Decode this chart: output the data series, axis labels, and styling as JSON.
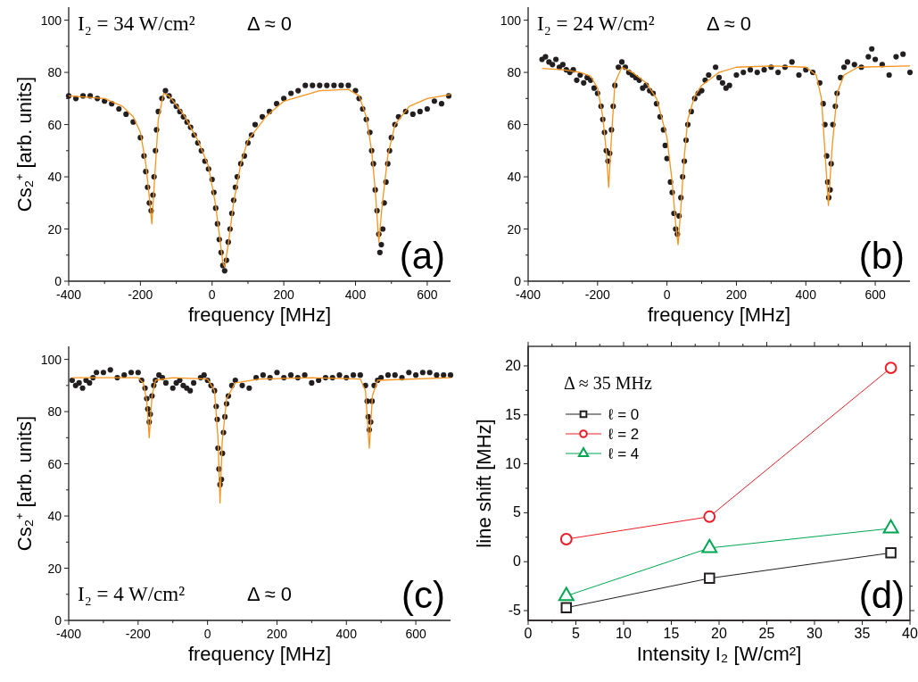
{
  "chart_data": [
    {
      "type": "scatter",
      "xlabel": "frequency [MHz]",
      "ylabel": "Cs₂⁺ [arb. units]",
      "annotations": [
        "I₂ = 34 W/cm²",
        "Δ ≈ 0",
        "(a)"
      ],
      "xlim": [
        -400,
        665
      ],
      "xticks": [
        -400,
        {
          "value": -300,
          "label": null
        },
        -200,
        {
          "value": -100,
          "label": null
        },
        0,
        {
          "value": 100,
          "label": null
        },
        200,
        {
          "value": 300,
          "label": null
        },
        400,
        {
          "value": 500,
          "label": null
        },
        600
      ],
      "ylim": [
        0,
        105
      ],
      "yticks": [
        0,
        {
          "value": 10,
          "label": null
        },
        20,
        {
          "value": 30,
          "label": null
        },
        40,
        {
          "value": 50,
          "label": null
        },
        60,
        {
          "value": 70,
          "label": null
        },
        80,
        {
          "value": 90,
          "label": null
        },
        100
      ],
      "series": [
        {
          "color": "#231f20",
          "marker": "circle",
          "x": [
            -400,
            -380,
            -360,
            -340,
            -320,
            -300,
            -280,
            -260,
            -240,
            -220,
            -200,
            -190,
            -185,
            -180,
            -175,
            -170,
            -165,
            -162,
            -158,
            -155,
            -150,
            -140,
            -130,
            -120,
            -110,
            -100,
            -90,
            -80,
            -70,
            -60,
            -50,
            -40,
            -30,
            -20,
            -10,
            0,
            5,
            10,
            15,
            20,
            25,
            30,
            35,
            40,
            45,
            50,
            55,
            60,
            65,
            70,
            80,
            90,
            100,
            110,
            120,
            140,
            160,
            180,
            200,
            220,
            240,
            260,
            280,
            300,
            320,
            340,
            360,
            380,
            400,
            410,
            420,
            430,
            440,
            445,
            450,
            455,
            460,
            465,
            468,
            472,
            476,
            480,
            485,
            490,
            495,
            500,
            510,
            520,
            540,
            560,
            580,
            600,
            620,
            640,
            660
          ],
          "values": [
            71,
            70,
            71,
            71,
            70,
            69,
            68,
            66,
            64,
            61,
            55,
            48,
            42,
            36,
            30,
            27,
            33,
            40,
            50,
            58,
            65,
            70,
            73,
            71,
            69,
            67,
            65,
            63,
            61,
            59,
            56,
            53,
            50,
            46,
            43,
            39,
            34,
            28,
            22,
            16,
            11,
            6,
            4,
            8,
            15,
            20,
            26,
            31,
            36,
            40,
            45,
            48,
            53,
            56,
            60,
            63,
            65,
            68,
            70,
            72,
            73,
            75,
            75,
            75,
            75,
            75,
            75,
            75,
            73,
            70,
            66,
            62,
            57,
            50,
            45,
            35,
            27,
            18,
            11,
            14,
            20,
            30,
            38,
            45,
            50,
            55,
            60,
            63,
            65,
            64,
            65,
            66,
            69,
            68,
            71
          ]
        },
        {
          "type": "line",
          "color": "#f7941d",
          "marker": "none",
          "x": [
            -400,
            -300,
            -250,
            -220,
            -200,
            -185,
            -175,
            -168,
            -160,
            -150,
            -135,
            -120,
            -80,
            -40,
            -10,
            10,
            20,
            30,
            35,
            45,
            60,
            80,
            100,
            150,
            200,
            300,
            380,
            410,
            430,
            445,
            455,
            465,
            475,
            490,
            510,
            550,
            600,
            665
          ],
          "values": [
            71,
            70,
            67,
            63,
            57,
            45,
            32,
            22,
            40,
            62,
            72,
            71,
            64,
            54,
            44,
            29,
            18,
            7,
            5.5,
            14,
            30,
            45,
            54,
            63,
            69,
            73,
            73.5,
            71,
            63,
            50,
            35,
            15,
            30,
            48,
            60,
            67,
            70,
            71.5
          ]
        }
      ]
    },
    {
      "type": "scatter",
      "xlabel": "frequency [MHz]",
      "annotations": [
        "I₂ = 24 W/cm²",
        "Δ ≈ 0",
        "(b)"
      ],
      "xlim": [
        -400,
        700
      ],
      "xticks": [
        -400,
        {
          "value": -300,
          "label": null
        },
        -200,
        {
          "value": -100,
          "label": null
        },
        0,
        {
          "value": 100,
          "label": null
        },
        200,
        {
          "value": 300,
          "label": null
        },
        400,
        {
          "value": 500,
          "label": null
        },
        600
      ],
      "ylim": [
        0,
        105
      ],
      "yticks": [
        0,
        {
          "value": 10,
          "label": null
        },
        20,
        {
          "value": 30,
          "label": null
        },
        40,
        {
          "value": 50,
          "label": null
        },
        60,
        {
          "value": 70,
          "label": null
        },
        80,
        {
          "value": 90,
          "label": null
        },
        100
      ],
      "series": [
        {
          "color": "#231f20",
          "marker": "circle",
          "x": [
            -360,
            -350,
            -340,
            -330,
            -320,
            -310,
            -300,
            -290,
            -280,
            -270,
            -260,
            -250,
            -240,
            -230,
            -220,
            -210,
            -200,
            -190,
            -185,
            -180,
            -175,
            -170,
            -165,
            -160,
            -155,
            -150,
            -140,
            -130,
            -120,
            -110,
            -100,
            -90,
            -80,
            -70,
            -60,
            -50,
            -40,
            -30,
            -20,
            -10,
            -5,
            0,
            10,
            15,
            20,
            25,
            30,
            35,
            40,
            45,
            50,
            55,
            60,
            70,
            80,
            90,
            100,
            110,
            120,
            140,
            150,
            160,
            170,
            180,
            200,
            220,
            240,
            260,
            280,
            300,
            320,
            340,
            360,
            380,
            400,
            420,
            440,
            450,
            455,
            460,
            463,
            466,
            470,
            473,
            478,
            485,
            490,
            500,
            510,
            520,
            540,
            560,
            580,
            590,
            600,
            620,
            640,
            660,
            680,
            700
          ],
          "values": [
            85,
            86,
            84,
            83,
            85,
            82,
            83,
            81,
            80,
            81,
            77,
            79,
            76,
            78,
            77,
            74,
            72,
            67,
            62,
            57,
            50,
            46,
            49,
            58,
            67,
            75,
            82,
            84,
            82,
            80,
            79,
            78,
            77,
            74,
            75,
            73,
            72,
            68,
            63,
            58,
            52,
            47,
            38,
            34,
            26,
            20,
            18,
            25,
            32,
            40,
            46,
            54,
            60,
            65,
            70,
            72,
            73,
            77,
            79,
            82,
            78,
            76,
            74,
            75,
            79,
            80,
            81,
            80,
            81,
            82,
            80,
            82,
            84,
            79,
            81,
            80,
            76,
            68,
            60,
            48,
            38,
            32,
            35,
            45,
            60,
            67,
            72,
            78,
            82,
            84,
            83,
            82,
            86,
            89,
            85,
            83,
            79,
            86,
            87,
            80
          ]
        },
        {
          "type": "line",
          "color": "#f7941d",
          "marker": "none",
          "x": [
            -360,
            -300,
            -250,
            -220,
            -200,
            -185,
            -175,
            -168,
            -160,
            -150,
            -130,
            -100,
            -60,
            -30,
            0,
            15,
            25,
            32,
            40,
            50,
            60,
            80,
            100,
            150,
            200,
            300,
            400,
            430,
            445,
            455,
            465,
            475,
            490,
            510,
            550,
            700
          ],
          "values": [
            81.5,
            81,
            80,
            78.5,
            74,
            63,
            50,
            36,
            55,
            76,
            82,
            80,
            76,
            70,
            55,
            38,
            22,
            14,
            28,
            48,
            62,
            71,
            75,
            80,
            82,
            82.5,
            82,
            79,
            70,
            50,
            29,
            50,
            72,
            79,
            82,
            82.5
          ]
        }
      ]
    },
    {
      "type": "scatter",
      "xlabel": "frequency [MHz]",
      "ylabel": "Cs₂⁺ [arb. units]",
      "annotations": [
        "I₂ = 4 W/cm²",
        "Δ ≈ 0",
        "(c)"
      ],
      "xlim": [
        -400,
        700
      ],
      "xticks": [
        -400,
        {
          "value": -300,
          "label": null
        },
        -200,
        {
          "value": -100,
          "label": null
        },
        0,
        {
          "value": 100,
          "label": null
        },
        200,
        {
          "value": 300,
          "label": null
        },
        400,
        {
          "value": 500,
          "label": null
        },
        600
      ],
      "ylim": [
        0,
        105
      ],
      "yticks": [
        0,
        {
          "value": 10,
          "label": null
        },
        20,
        {
          "value": 30,
          "label": null
        },
        40,
        {
          "value": 50,
          "label": null
        },
        60,
        {
          "value": 70,
          "label": null
        },
        80,
        {
          "value": 90,
          "label": null
        },
        100
      ],
      "series": [
        {
          "color": "#231f20",
          "marker": "circle",
          "x": [
            -390,
            -380,
            -370,
            -360,
            -350,
            -340,
            -330,
            -320,
            -300,
            -280,
            -260,
            -240,
            -220,
            -200,
            -190,
            -180,
            -175,
            -172,
            -168,
            -165,
            -160,
            -155,
            -150,
            -140,
            -130,
            -120,
            -100,
            -90,
            -80,
            -70,
            -60,
            -50,
            -40,
            -20,
            -10,
            0,
            10,
            20,
            25,
            28,
            30,
            33,
            36,
            40,
            43,
            46,
            50,
            55,
            60,
            70,
            80,
            100,
            120,
            140,
            160,
            180,
            200,
            220,
            240,
            260,
            280,
            300,
            320,
            340,
            360,
            380,
            400,
            420,
            440,
            455,
            460,
            463,
            466,
            470,
            474,
            480,
            490,
            500,
            520,
            540,
            560,
            580,
            600,
            620,
            640,
            660,
            680,
            700
          ],
          "values": [
            92,
            90,
            91,
            89,
            92,
            91,
            93,
            95,
            95,
            96,
            93,
            94,
            95,
            95,
            92,
            89,
            85,
            81,
            76,
            79,
            86,
            90,
            92,
            94,
            93,
            91,
            89,
            91,
            92,
            90,
            89,
            88,
            91,
            93,
            94,
            92,
            90,
            88,
            82,
            77,
            66,
            58,
            52,
            54,
            64,
            72,
            78,
            83,
            86,
            90,
            92,
            90,
            89,
            93,
            94,
            93,
            95,
            93,
            94,
            93,
            94,
            91,
            92,
            93,
            93,
            94,
            93,
            94,
            94,
            90,
            84,
            78,
            73,
            76,
            84,
            90,
            92,
            93,
            94,
            94,
            93,
            95,
            94,
            95,
            95,
            94,
            94,
            94
          ]
        },
        {
          "type": "line",
          "color": "#f7941d",
          "marker": "none",
          "x": [
            -390,
            -200,
            -185,
            -175,
            -168,
            -160,
            -150,
            -100,
            0,
            20,
            30,
            36,
            42,
            55,
            80,
            150,
            300,
            440,
            455,
            466,
            475,
            490,
            700
          ],
          "values": [
            93,
            93,
            91,
            84,
            70,
            86,
            92,
            93,
            92.5,
            88,
            70,
            45,
            68,
            85,
            91,
            92.5,
            93,
            92.5,
            88,
            66,
            86,
            92,
            93
          ]
        }
      ]
    },
    {
      "type": "line",
      "xlabel": "Intensity I₂ [W/cm²]",
      "ylabel": "line shift [MHz]",
      "legend_title": "Δ ≈ 35 MHz",
      "legend": "top left",
      "annotations": [
        "(d)"
      ],
      "xlim": [
        0,
        40
      ],
      "xticks": [
        0,
        {
          "value": 2.5,
          "label": null
        },
        5,
        {
          "value": 7.5,
          "label": null
        },
        10,
        {
          "value": 12.5,
          "label": null
        },
        15,
        {
          "value": 17.5,
          "label": null
        },
        20,
        {
          "value": 22.5,
          "label": null
        },
        25,
        {
          "value": 27.5,
          "label": null
        },
        30,
        {
          "value": 32.5,
          "label": null
        },
        35,
        {
          "value": 37.5,
          "label": null
        },
        40
      ],
      "ylim": [
        -6,
        22
      ],
      "yticks": [
        -5,
        {
          "value": -2.5,
          "label": null
        },
        0,
        {
          "value": 2.5,
          "label": null
        },
        5,
        {
          "value": 7.5,
          "label": null
        },
        10,
        {
          "value": 12.5,
          "label": null
        },
        15,
        {
          "value": 17.5,
          "label": null
        },
        20
      ],
      "series": [
        {
          "name": "ℓ = 0",
          "color": "#231f20",
          "marker": "square",
          "x": [
            4,
            19,
            38
          ],
          "values": [
            -4.7,
            -1.7,
            0.9
          ]
        },
        {
          "name": "ℓ = 2",
          "color": "#ed1c24",
          "marker": "circle",
          "x": [
            4,
            19,
            38
          ],
          "values": [
            2.3,
            4.6,
            19.8
          ]
        },
        {
          "name": "ℓ = 4",
          "color": "#00a651",
          "marker": "triangle",
          "x": [
            4,
            19,
            38
          ],
          "values": [
            -3.5,
            1.4,
            3.4
          ]
        }
      ]
    }
  ]
}
